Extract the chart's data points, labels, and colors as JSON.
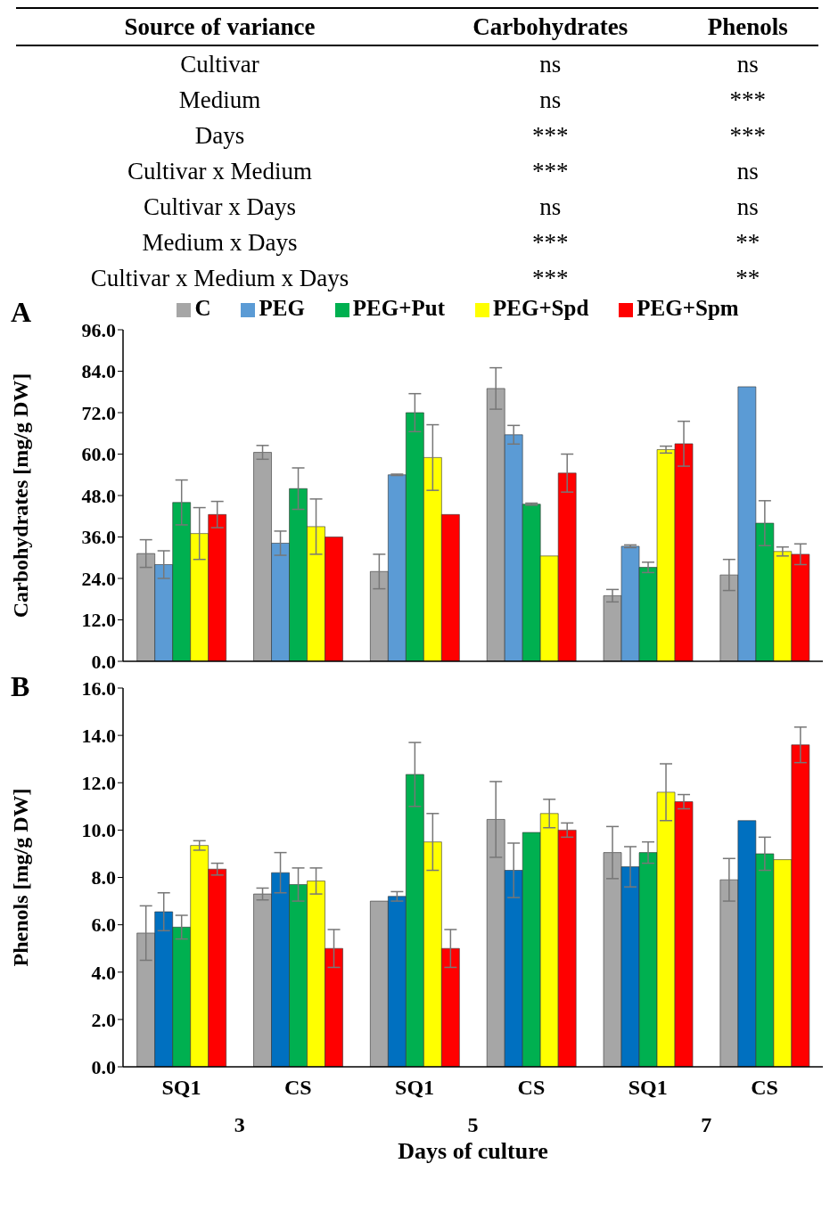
{
  "chart_data": [
    {
      "type": "other",
      "categories": [
        "Source of variance",
        "Carbohydrates",
        "Phenols"
      ],
      "y_categories": [
        "Cultivar",
        "Medium",
        "Days",
        "Cultivar x Medium",
        "Cultivar x Days",
        "Medium x Days",
        "Cultivar x Medium x Days"
      ],
      "cell_labels": [
        [
          "ns",
          "ns"
        ],
        [
          "ns",
          "***"
        ],
        [
          "***",
          "***"
        ],
        [
          "***",
          "ns"
        ],
        [
          "ns",
          "ns"
        ],
        [
          "***",
          "**"
        ],
        [
          "***",
          "**"
        ]
      ]
    },
    {
      "type": "bar",
      "title": "A",
      "ylabel": "Carbohydrates [mg/g DW]",
      "categories": [
        null,
        null,
        null,
        null,
        null,
        null
      ],
      "tick_labels": "y",
      "legend": "top",
      "ylim": [
        0,
        96
      ],
      "yticks": [
        {
          "value": 0,
          "label": "0.0"
        },
        {
          "value": 12,
          "label": "12.0"
        },
        {
          "value": 24,
          "label": "24.0"
        },
        {
          "value": 36,
          "label": "36.0"
        },
        {
          "value": 48,
          "label": "48.0"
        },
        {
          "value": 60,
          "label": "60.0"
        },
        {
          "value": 72,
          "label": "72.0"
        },
        {
          "value": 84,
          "label": "84.0"
        },
        {
          "value": 96,
          "label": "96.0"
        }
      ],
      "series": [
        {
          "name": "C",
          "color": "#a6a6a6",
          "values": [
            31.2,
            60.5,
            26,
            79,
            19,
            25
          ],
          "errors": [
            4,
            2,
            5,
            6,
            1.8,
            4.5
          ]
        },
        {
          "name": "PEG",
          "color": "#5b9bd5",
          "values": [
            28,
            34.2,
            54,
            65.6,
            33.3,
            79.5
          ],
          "errors": [
            4,
            3.5,
            0.2,
            2.7,
            0.4,
            null
          ]
        },
        {
          "name": "PEG+Put",
          "color": "#00b050",
          "values": [
            46,
            50,
            72,
            45.5,
            27.2,
            40
          ],
          "errors": [
            6.5,
            6,
            5.5,
            0.3,
            1.5,
            6.5
          ]
        },
        {
          "name": "PEG+Spd",
          "color": "#ffff00",
          "values": [
            37,
            39,
            59,
            30.5,
            61.3,
            31.8
          ],
          "errors": [
            7.5,
            8,
            9.5,
            null,
            1,
            1.3
          ]
        },
        {
          "name": "PEG+Spm",
          "color": "#ff0000",
          "values": [
            42.5,
            36,
            42.5,
            54.5,
            63,
            31
          ],
          "errors": [
            3.8,
            null,
            null,
            5.5,
            6.5,
            3
          ]
        }
      ]
    },
    {
      "type": "bar",
      "title": "B",
      "ylabel": "Phenols [mg/g DW]",
      "xlabel": "Days of culture",
      "categories": [
        "SQ1",
        "CS",
        "SQ1",
        "CS",
        "SQ1",
        "CS"
      ],
      "annotations": [
        "3",
        "5",
        "7"
      ],
      "ylim": [
        0,
        16
      ],
      "yticks": [
        {
          "value": 0,
          "label": "0.0"
        },
        {
          "value": 2,
          "label": "2.0"
        },
        {
          "value": 4,
          "label": "4.0"
        },
        {
          "value": 6,
          "label": "6.0"
        },
        {
          "value": 8,
          "label": "8.0"
        },
        {
          "value": 10,
          "label": "10.0"
        },
        {
          "value": 12,
          "label": "12.0"
        },
        {
          "value": 14,
          "label": "14.0"
        },
        {
          "value": 16,
          "label": "16.0"
        }
      ],
      "series": [
        {
          "color": "#a6a6a6",
          "values": [
            5.65,
            7.3,
            7.0,
            10.45,
            9.05,
            7.9
          ],
          "errors": [
            1.15,
            0.25,
            null,
            1.6,
            1.1,
            0.9
          ]
        },
        {
          "color": "#0070c0",
          "values": [
            6.55,
            8.2,
            7.2,
            8.3,
            8.45,
            10.4
          ],
          "errors": [
            0.8,
            0.85,
            0.2,
            1.15,
            0.85,
            null
          ]
        },
        {
          "color": "#00b050",
          "values": [
            5.9,
            7.7,
            12.35,
            9.9,
            9.05,
            9.0
          ],
          "errors": [
            0.5,
            0.7,
            1.35,
            null,
            0.45,
            0.7
          ]
        },
        {
          "color": "#ffff00",
          "values": [
            9.35,
            7.85,
            9.5,
            10.7,
            11.6,
            8.75
          ],
          "errors": [
            0.2,
            0.55,
            1.2,
            0.6,
            1.2,
            null
          ]
        },
        {
          "color": "#ff0000",
          "values": [
            8.35,
            5.0,
            5.0,
            10.0,
            11.2,
            13.6
          ],
          "errors": [
            0.25,
            0.8,
            0.8,
            0.3,
            0.3,
            0.75
          ]
        }
      ]
    }
  ]
}
